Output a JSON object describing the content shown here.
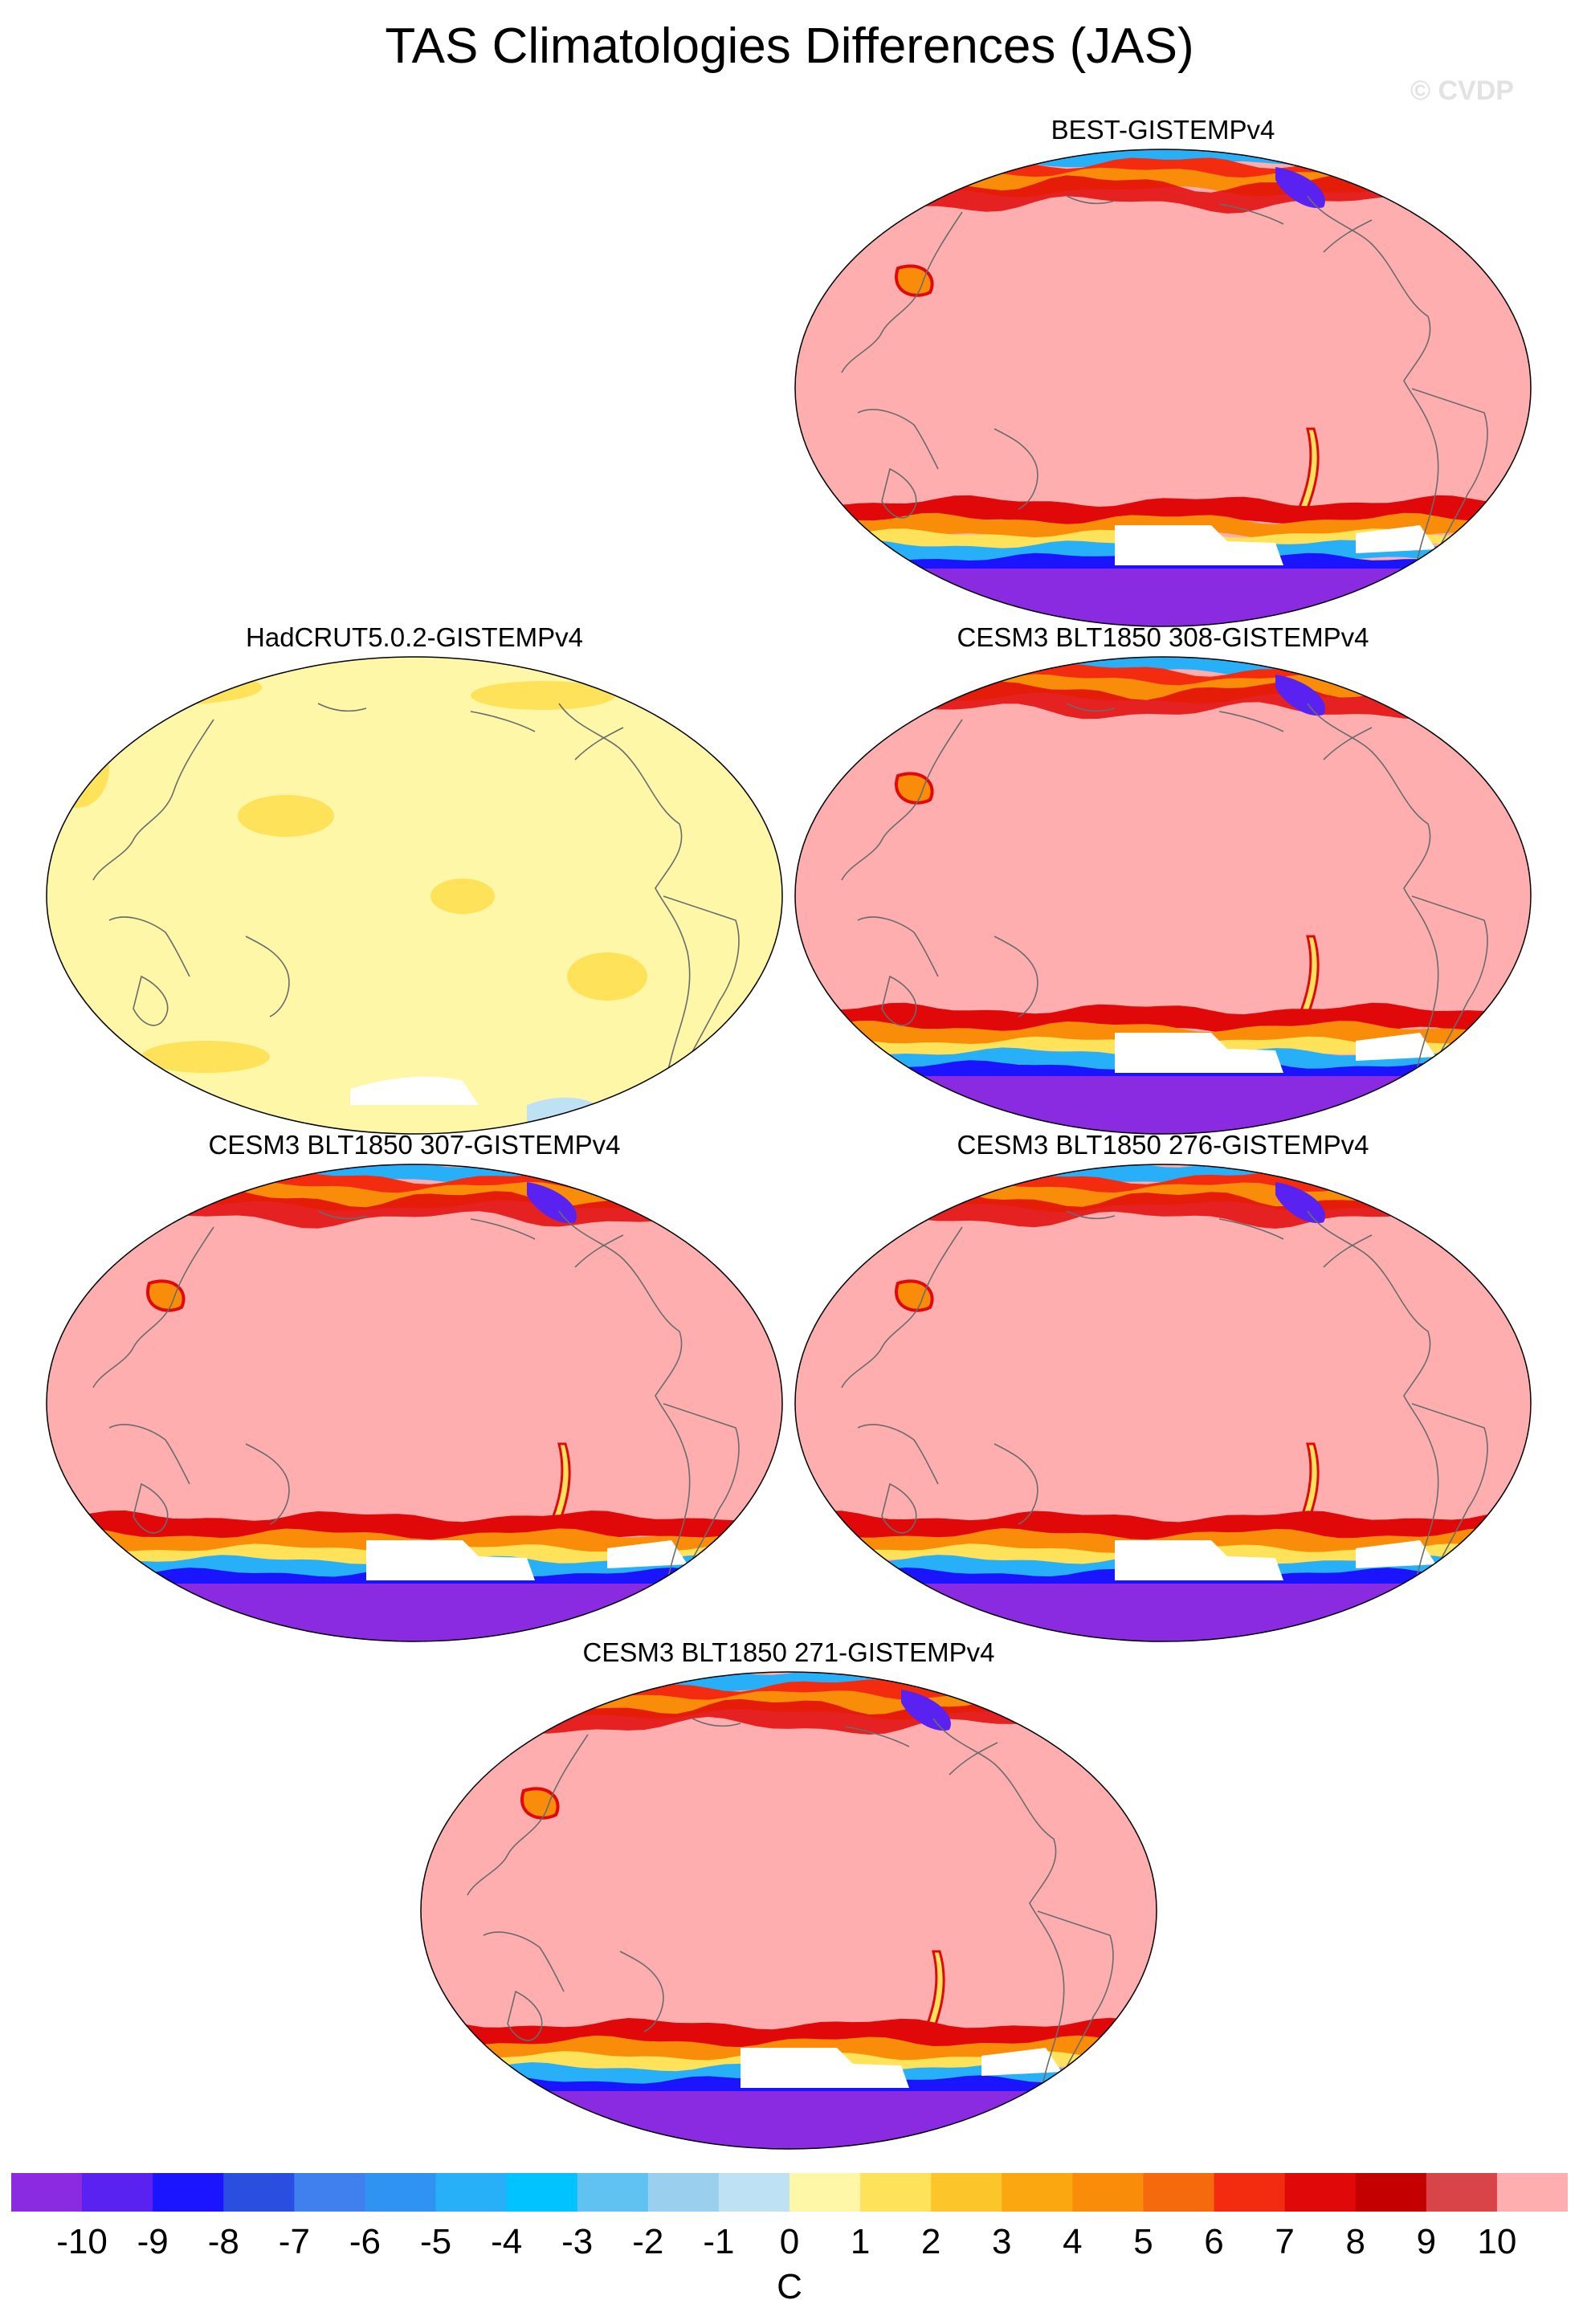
{
  "title": "TAS Climatologies Differences (JAS)",
  "watermark": "© CVDP",
  "panels": [
    {
      "id": "best",
      "title": "BEST-GISTEMPv4",
      "style": "full"
    },
    {
      "id": "had",
      "title": "HadCRUT5.0.2-GISTEMPv4",
      "style": "yellow"
    },
    {
      "id": "308",
      "title": "CESM3 BLT1850 308-GISTEMPv4",
      "style": "full"
    },
    {
      "id": "307",
      "title": "CESM3 BLT1850 307-GISTEMPv4",
      "style": "full"
    },
    {
      "id": "276",
      "title": "CESM3 BLT1850 276-GISTEMPv4",
      "style": "full"
    },
    {
      "id": "271",
      "title": "CESM3 BLT1850 271-GISTEMPv4",
      "style": "full"
    }
  ],
  "colorbar": {
    "unit": "C",
    "labels": [
      "-10",
      "-9",
      "-8",
      "-7",
      "-6",
      "-5",
      "-4",
      "-3",
      "-2",
      "-1",
      "0",
      "1",
      "2",
      "3",
      "4",
      "5",
      "6",
      "7",
      "8",
      "9",
      "10"
    ],
    "colors": [
      "#8a2be2",
      "#5a22f0",
      "#1a14ff",
      "#2a4fe0",
      "#3f7fee",
      "#2f93f4",
      "#27b0f8",
      "#00c3ff",
      "#5fc2f0",
      "#9ad0ee",
      "#bfe1f4",
      "#fff7a8",
      "#fde25a",
      "#fcc52a",
      "#fba70f",
      "#f98d0a",
      "#f66a0e",
      "#f32c10",
      "#e00808",
      "#c40000",
      "#d94448",
      "#ffaeb0"
    ]
  }
}
